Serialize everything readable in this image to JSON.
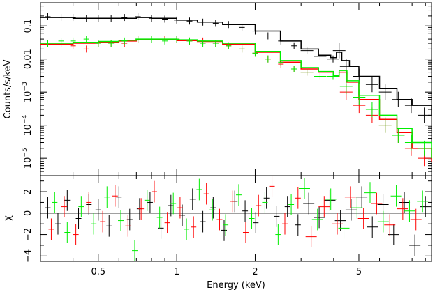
{
  "chart_data": [
    {
      "type": "scatter",
      "panel": "spectrum",
      "title": "",
      "xlabel": "",
      "ylabel": "Counts/s/keV",
      "xscale": "log",
      "yscale": "log",
      "xlim": [
        0.3,
        9.5
      ],
      "ylim": [
        3e-06,
        0.5
      ],
      "grid": false,
      "legend": "none",
      "y_ticks": [
        {
          "value": 0.1,
          "label": "0.1"
        },
        {
          "value": 0.01,
          "label": "0.01"
        },
        {
          "value": 0.001,
          "label": "10",
          "exp": "−3"
        },
        {
          "value": 0.0001,
          "label": "10",
          "exp": "−4"
        },
        {
          "value": 1e-05,
          "label": "10",
          "exp": "−5"
        }
      ],
      "series": [
        {
          "color": "#000000",
          "x": [
            0.32,
            0.36,
            0.4,
            0.45,
            0.5,
            0.56,
            0.63,
            0.71,
            0.8,
            0.9,
            1.0,
            1.12,
            1.26,
            1.41,
            1.58,
            1.78,
            2.0,
            2.24,
            2.51,
            2.82,
            3.16,
            3.55,
            3.98,
            4.2,
            4.47,
            5.01,
            5.62,
            6.31,
            7.08,
            7.94,
            8.91
          ],
          "y": [
            0.19,
            0.18,
            0.18,
            0.17,
            0.17,
            0.17,
            0.18,
            0.19,
            0.17,
            0.16,
            0.15,
            0.14,
            0.13,
            0.12,
            0.11,
            0.09,
            0.07,
            0.05,
            0.035,
            0.025,
            0.018,
            0.012,
            0.01,
            0.018,
            0.006,
            0.003,
            0.0017,
            0.001,
            0.0006,
            0.0004,
            0.0002
          ],
          "model_x": [
            0.3,
            0.4,
            0.5,
            0.6,
            0.7,
            0.8,
            1.0,
            1.2,
            1.5,
            2.0,
            2.5,
            3.0,
            3.5,
            3.9,
            4.1,
            4.3,
            4.6,
            5.0,
            6.0,
            7.0,
            8.0,
            9.5
          ],
          "model_y": [
            0.18,
            0.17,
            0.17,
            0.17,
            0.18,
            0.17,
            0.15,
            0.13,
            0.11,
            0.07,
            0.035,
            0.02,
            0.013,
            0.011,
            0.016,
            0.009,
            0.006,
            0.003,
            0.0013,
            0.0006,
            0.0004,
            0.0002
          ]
        },
        {
          "color": "#ff0000",
          "x": [
            0.32,
            0.36,
            0.4,
            0.45,
            0.5,
            0.56,
            0.63,
            0.71,
            0.8,
            0.9,
            1.0,
            1.12,
            1.26,
            1.41,
            1.58,
            1.78,
            2.0,
            2.24,
            2.51,
            2.82,
            3.16,
            3.55,
            3.98,
            4.47,
            5.01,
            5.62,
            6.31,
            7.08,
            7.94,
            8.91
          ],
          "y": [
            0.03,
            0.03,
            0.025,
            0.02,
            0.03,
            0.03,
            0.03,
            0.04,
            0.04,
            0.04,
            0.04,
            0.035,
            0.035,
            0.03,
            0.025,
            0.02,
            0.015,
            0.01,
            0.007,
            0.005,
            0.004,
            0.003,
            0.003,
            0.001,
            0.0004,
            0.0002,
            0.0001,
            5e-05,
            2e-05,
            1e-05
          ],
          "model_x": [
            0.3,
            0.4,
            0.5,
            0.6,
            0.7,
            0.8,
            1.0,
            1.2,
            1.5,
            2.0,
            2.5,
            3.0,
            3.5,
            4.0,
            4.2,
            4.5,
            5.0,
            6.0,
            7.0,
            8.0,
            9.5
          ],
          "model_y": [
            0.028,
            0.03,
            0.032,
            0.035,
            0.038,
            0.038,
            0.036,
            0.034,
            0.028,
            0.016,
            0.008,
            0.005,
            0.004,
            0.003,
            0.004,
            0.002,
            0.0006,
            0.00015,
            6e-05,
            2e-05,
            8e-06
          ]
        },
        {
          "color": "#00ee00",
          "x": [
            0.32,
            0.36,
            0.4,
            0.45,
            0.5,
            0.56,
            0.63,
            0.71,
            0.8,
            0.9,
            1.0,
            1.12,
            1.26,
            1.41,
            1.58,
            1.78,
            2.0,
            2.24,
            2.51,
            2.82,
            3.16,
            3.55,
            3.98,
            4.47,
            5.01,
            5.62,
            6.31,
            7.08,
            7.94,
            8.91
          ],
          "y": [
            0.03,
            0.035,
            0.035,
            0.04,
            0.03,
            0.03,
            0.035,
            0.04,
            0.04,
            0.035,
            0.04,
            0.035,
            0.03,
            0.03,
            0.025,
            0.02,
            0.015,
            0.01,
            0.008,
            0.005,
            0.004,
            0.003,
            0.003,
            0.0015,
            0.0007,
            0.0003,
            0.0001,
            5e-05,
            3e-05,
            2e-05
          ],
          "model_x": [
            0.3,
            0.4,
            0.5,
            0.6,
            0.7,
            0.8,
            1.0,
            1.2,
            1.5,
            2.0,
            2.5,
            3.0,
            3.5,
            4.0,
            4.2,
            4.5,
            5.0,
            6.0,
            7.0,
            8.0,
            9.5
          ],
          "model_y": [
            0.03,
            0.032,
            0.034,
            0.037,
            0.04,
            0.04,
            0.038,
            0.035,
            0.03,
            0.017,
            0.009,
            0.0055,
            0.0042,
            0.0032,
            0.0045,
            0.0022,
            0.0008,
            0.0002,
            8e-05,
            3e-05,
            1e-05
          ]
        }
      ]
    },
    {
      "type": "scatter",
      "panel": "residuals",
      "title": "",
      "xlabel": "Energy (keV)",
      "ylabel": "χ",
      "xscale": "log",
      "yscale": "linear",
      "xlim": [
        0.3,
        9.5
      ],
      "ylim": [
        -4.5,
        3.5
      ],
      "grid": false,
      "legend": "none",
      "x_ticks": [
        {
          "value": 0.5,
          "label": "0.5"
        },
        {
          "value": 1,
          "label": "1"
        },
        {
          "value": 2,
          "label": "2"
        },
        {
          "value": 5,
          "label": "5"
        }
      ],
      "y_ticks": [
        {
          "value": 2,
          "label": "2"
        },
        {
          "value": 0,
          "label": "0"
        },
        {
          "value": -2,
          "label": "−2"
        },
        {
          "value": -4,
          "label": "−4"
        }
      ],
      "series": [
        {
          "color": "#000000",
          "x": [
            0.32,
            0.35,
            0.38,
            0.42,
            0.46,
            0.5,
            0.55,
            0.6,
            0.66,
            0.72,
            0.79,
            0.87,
            0.95,
            1.05,
            1.15,
            1.26,
            1.38,
            1.52,
            1.67,
            1.83,
            2.01,
            2.21,
            2.42,
            2.66,
            2.92,
            3.21,
            3.52,
            3.87,
            4.25,
            4.67,
            5.13,
            5.63,
            6.19,
            6.8,
            7.47,
            8.2,
            9.0
          ],
          "y": [
            0.5,
            -1.0,
            1.2,
            -0.5,
            0.8,
            0.3,
            -1.2,
            1.5,
            -0.6,
            0.4,
            1.0,
            -1.4,
            0.7,
            -0.2,
            1.3,
            -0.8,
            0.5,
            -1.6,
            1.1,
            0.2,
            -0.9,
            1.4,
            -0.3,
            0.6,
            -1.1,
            0.9,
            -0.4,
            1.2,
            -0.7,
            0.3,
            1.5,
            -1.3,
            0.8,
            -2.0,
            1.0,
            -3.0,
            0.6
          ]
        },
        {
          "color": "#ff0000",
          "x": [
            0.33,
            0.37,
            0.41,
            0.46,
            0.52,
            0.58,
            0.65,
            0.73,
            0.82,
            0.92,
            1.03,
            1.16,
            1.3,
            1.46,
            1.64,
            1.84,
            2.06,
            2.32,
            2.6,
            2.92,
            3.28,
            3.68,
            4.13,
            4.64,
            5.21,
            5.85,
            6.57,
            7.37,
            8.28
          ],
          "y": [
            -1.5,
            0.6,
            -2.0,
            1.0,
            -0.8,
            1.6,
            -1.2,
            0.4,
            2.0,
            -0.9,
            0.5,
            -1.3,
            1.8,
            -0.6,
            1.1,
            -1.8,
            0.7,
            2.5,
            -1.0,
            1.4,
            -2.2,
            0.6,
            -1.0,
            1.5,
            -0.5,
            0.9,
            -1.1,
            0.4,
            -0.6
          ]
        },
        {
          "color": "#00ee00",
          "x": [
            0.34,
            0.38,
            0.43,
            0.48,
            0.54,
            0.61,
            0.69,
            0.77,
            0.86,
            0.97,
            1.09,
            1.22,
            1.37,
            1.54,
            1.73,
            1.94,
            2.18,
            2.45,
            2.75,
            3.09,
            3.47,
            3.9,
            4.38,
            4.92,
            5.52,
            6.2,
            6.96,
            7.82,
            8.78
          ],
          "y": [
            1.0,
            -1.8,
            0.6,
            -1.0,
            1.5,
            -0.7,
            -3.5,
            1.2,
            -0.4,
            0.9,
            -1.5,
            2.2,
            0.3,
            -1.1,
            1.7,
            -0.5,
            1.0,
            -2.0,
            0.8,
            2.3,
            -0.6,
            1.3,
            -1.4,
            0.5,
            1.9,
            -0.8,
            1.6,
            0.2,
            1.1
          ]
        }
      ]
    }
  ]
}
